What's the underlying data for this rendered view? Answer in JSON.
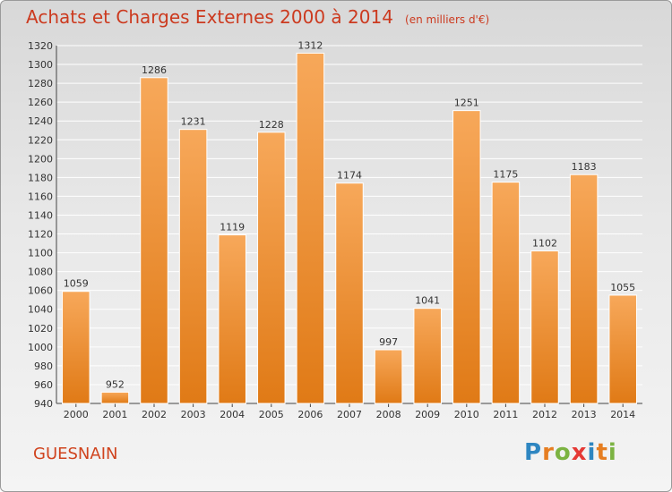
{
  "header": {
    "title": "Achats et Charges Externes 2000 à 2014",
    "unit": "(en milliers d'€)"
  },
  "footer": {
    "city": "GUESNAIN",
    "logo_letters": [
      "P",
      "r",
      "o",
      "x",
      "i",
      "t",
      "i"
    ]
  },
  "colors": {
    "bar_top": "#f7a85a",
    "bar_bottom": "#e07a16",
    "title": "#cc3a1f",
    "grid": "#ffffff"
  },
  "chart_data": {
    "type": "bar",
    "title": "Achats et Charges Externes 2000 à 2014",
    "categories": [
      "2000",
      "2001",
      "2002",
      "2003",
      "2004",
      "2005",
      "2006",
      "2007",
      "2008",
      "2009",
      "2010",
      "2011",
      "2012",
      "2013",
      "2014"
    ],
    "values": [
      1059,
      952,
      1286,
      1231,
      1119,
      1228,
      1312,
      1174,
      997,
      1041,
      1251,
      1175,
      1102,
      1183,
      1055
    ],
    "ylim": [
      940,
      1320
    ],
    "yticks": [
      940,
      960,
      980,
      1000,
      1020,
      1040,
      1060,
      1080,
      1100,
      1120,
      1140,
      1160,
      1180,
      1200,
      1220,
      1240,
      1260,
      1280,
      1300,
      1320
    ],
    "grid": true,
    "xlabel": "",
    "ylabel": ""
  }
}
